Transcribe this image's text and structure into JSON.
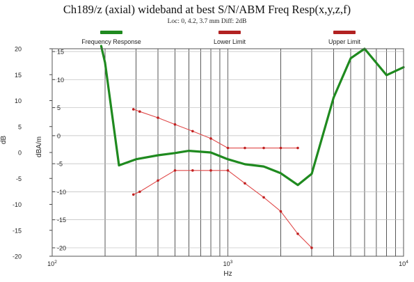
{
  "chart_data": {
    "type": "line",
    "title": "Ch189/z (axial) wideband at best S/N/ABM Freq Resp(x,y,z,f)",
    "subtitle": "Loc: 0, 4.2, 3.7 mm Diff: 2dB",
    "xlabel": "Hz",
    "ylabel": "dBA/m",
    "left_axis_partial_label": "dB",
    "xscale": "log",
    "xlim": [
      100,
      10000
    ],
    "ylim": [
      -20,
      16
    ],
    "left_ylim": [
      -20,
      20
    ],
    "x_ticks": [
      {
        "value": 100,
        "base": "10",
        "exp": "2"
      },
      {
        "value": 1000,
        "base": "10",
        "exp": "3"
      },
      {
        "value": 10000,
        "base": "10",
        "exp": "4"
      }
    ],
    "y_ticks": [
      -20,
      -15,
      -10,
      -5,
      0,
      5,
      10,
      15
    ],
    "left_y_ticks": [
      -20,
      -15,
      -10,
      -5,
      0,
      5,
      10,
      15,
      20
    ],
    "grid": true,
    "legend_position": "top",
    "legend": [
      {
        "label": "Frequency Response",
        "color": "#1f8a1f"
      },
      {
        "label": "Lower Limit",
        "color": "#b22222"
      },
      {
        "label": "Upper Limit",
        "color": "#b22222"
      }
    ],
    "series": [
      {
        "name": "Frequency Response",
        "color": "#1f8a1f",
        "markers": false,
        "x": [
          190,
          200,
          240,
          300,
          400,
          500,
          600,
          800,
          1000,
          1250,
          1600,
          2000,
          2500,
          3000,
          4000,
          5000,
          6000,
          8000,
          10000
        ],
        "y": [
          16,
          13,
          -5.3,
          -4.2,
          -3.5,
          -3.1,
          -2.7,
          -3.0,
          -4.2,
          -5.1,
          -5.5,
          -6.7,
          -8.8,
          -6.8,
          6.8,
          13.8,
          15.5,
          10.8,
          12.2
        ]
      },
      {
        "name": "Upper Limit",
        "color": "#e04848",
        "markers": true,
        "x": [
          290,
          315,
          400,
          500,
          630,
          800,
          1000,
          1250,
          1600,
          2000,
          2500
        ],
        "y": [
          4.7,
          4.3,
          3.2,
          2.0,
          0.8,
          -0.5,
          -2.2,
          -2.2,
          -2.2,
          -2.2,
          -2.2
        ]
      },
      {
        "name": "Lower Limit",
        "color": "#e04848",
        "markers": true,
        "x": [
          290,
          315,
          400,
          500,
          630,
          800,
          1000,
          1250,
          1600,
          2000,
          2500,
          3000
        ],
        "y": [
          -10.5,
          -10.0,
          -8.0,
          -6.2,
          -6.2,
          -6.2,
          -6.2,
          -8.5,
          -11.0,
          -13.5,
          -17.5,
          -20.0
        ]
      }
    ]
  }
}
